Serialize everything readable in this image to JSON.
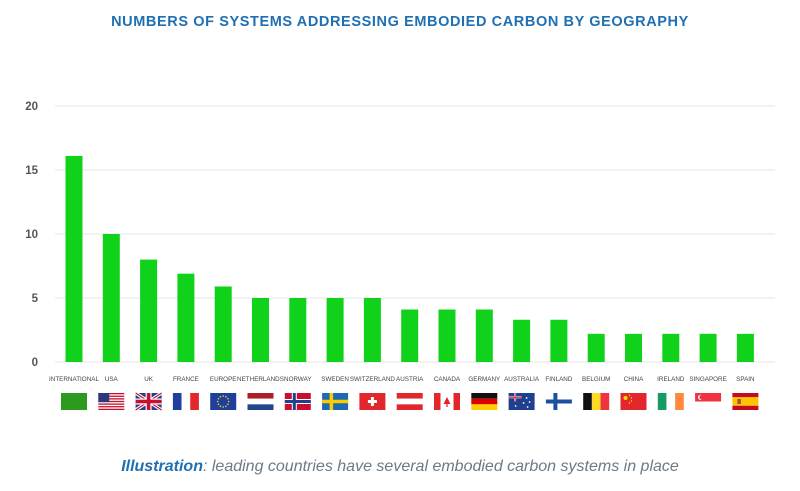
{
  "chart_data": {
    "type": "bar",
    "title": "NUMBERS OF SYSTEMS ADDRESSING EMBODIED CARBON BY GEOGRAPHY",
    "categories": [
      "INTERNATIONAL",
      "USA",
      "UK",
      "FRANCE",
      "EUROPE",
      "NETHERLANDS",
      "NORWAY",
      "SWEDEN",
      "SWITZERLAND",
      "AUSTRIA",
      "CANADA",
      "GERMANY",
      "AUSTRALIA",
      "FINLAND",
      "BELGIUM",
      "CHINA",
      "IRELAND",
      "SINGAPORE",
      "SPAIN"
    ],
    "values": [
      16.1,
      10,
      8,
      6.9,
      5.9,
      5,
      5,
      5,
      5,
      4.1,
      4.1,
      4.1,
      3.3,
      3.3,
      2.2,
      2.2,
      2.2,
      2.2,
      2.2
    ],
    "yticks": [
      0,
      5,
      10,
      15,
      20
    ],
    "ylim": [
      0,
      20
    ],
    "grid": true,
    "bar_color": "#11d21b",
    "flags": [
      "green",
      "usa",
      "uk",
      "france",
      "eu",
      "netherlands",
      "norway",
      "sweden",
      "switzerland",
      "austria",
      "canada",
      "germany",
      "australia",
      "finland",
      "belgium",
      "china",
      "ireland",
      "singapore",
      "spain"
    ]
  },
  "caption": {
    "strong": "Illustration",
    "text": ": leading countries have several embodied carbon systems in place"
  }
}
